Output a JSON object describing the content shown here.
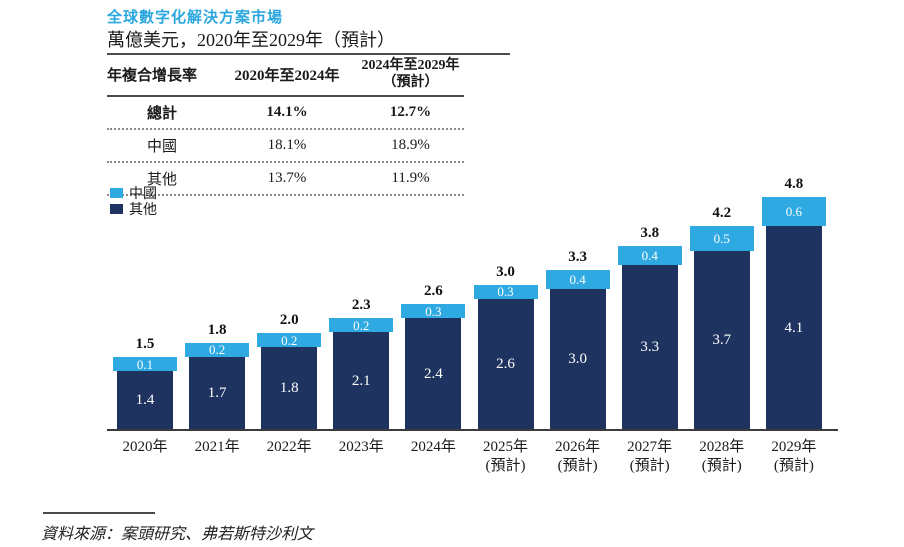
{
  "title": "全球數字化解決方案市場",
  "subtitle": "萬億美元，2020年至2029年（預計）",
  "colors": {
    "china": "#2FA9E1",
    "other": "#1E335F",
    "title": "#2BA7DF",
    "axis": "#3b3b3b"
  },
  "cagr_table": {
    "col_headers": [
      "年複合增長率",
      "2020年至2024年",
      [
        "2024年至2029年",
        "（預計）"
      ]
    ],
    "rows": [
      {
        "label": "總計",
        "cagr_2020_2024": "14.1%",
        "cagr_2024_2029": "12.7%",
        "bold": true
      },
      {
        "label": "中國",
        "cagr_2020_2024": "18.1%",
        "cagr_2024_2029": "18.9%",
        "bold": false
      },
      {
        "label": "其他",
        "cagr_2020_2024": "13.7%",
        "cagr_2024_2029": "11.9%",
        "bold": false
      }
    ]
  },
  "legend": [
    {
      "label": "中國",
      "color": "#2FA9E1"
    },
    {
      "label": "其他",
      "color": "#1E335F"
    }
  ],
  "chart_data": {
    "type": "bar",
    "stacked": true,
    "title": "全球數字化解決方案市場",
    "unit": "萬億美元",
    "ylim": [
      0,
      5
    ],
    "grid": false,
    "legend_position": "top-left",
    "categories": [
      "2020年",
      "2021年",
      "2022年",
      "2023年",
      "2024年",
      "2025年",
      "2026年",
      "2027年",
      "2028年",
      "2029年"
    ],
    "category_notes": [
      "",
      "",
      "",
      "",
      "",
      "(預計)",
      "(預計)",
      "(預計)",
      "(預計)",
      "(預計)"
    ],
    "series": [
      {
        "name": "中國",
        "color": "#2FA9E1",
        "values": [
          0.1,
          0.2,
          0.2,
          0.2,
          0.3,
          0.3,
          0.4,
          0.4,
          0.5,
          0.6
        ]
      },
      {
        "name": "其他",
        "color": "#1E335F",
        "values": [
          1.4,
          1.7,
          1.8,
          2.1,
          2.4,
          2.6,
          3.0,
          3.3,
          3.7,
          4.1
        ]
      }
    ],
    "totals": [
      1.5,
      1.8,
      2.0,
      2.3,
      2.6,
      3.0,
      3.3,
      3.8,
      4.2,
      4.8
    ]
  },
  "source": "資料來源：案頭研究、弗若斯特沙利文"
}
